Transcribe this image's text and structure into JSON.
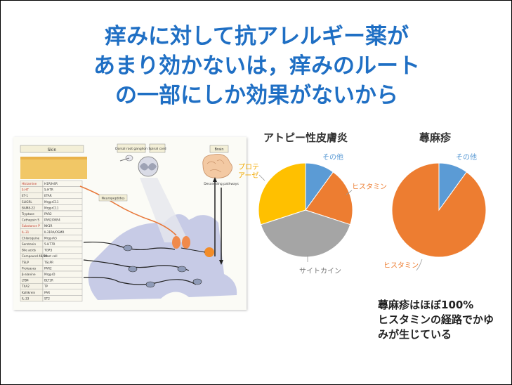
{
  "title": {
    "lines": [
      "痒みに対して抗アレルギー薬が",
      "あまり効かないは，痒みのルート",
      "の一部にしか効果がないから"
    ]
  },
  "figure": {
    "skin_label": "Skin",
    "drg_label": "Dorsal root ganglion",
    "spinal_label": "Spinal cord",
    "brain_label": "Brain",
    "descending_label": "Descending pathways",
    "neuropeptides_label": "Neuropeptides",
    "pruritogens": [
      "Histamine",
      "5-HT",
      "ET-1",
      "SLIGRL",
      "BAM8-22",
      "Tryptase",
      "Cathepsin S",
      "Substance P",
      "IL-31",
      "Chloroquine",
      "Serotonin",
      "Bile acids",
      "Compound 48/80",
      "TSLP",
      "Proteases",
      "β-alanine",
      "LTB4",
      "TXA2",
      "Kallikrein",
      "IL-33"
    ],
    "receptors": [
      "H1R/H4R",
      "5-HTR",
      "ETAR",
      "MrgprC11",
      "MrgprC11",
      "PAR2",
      "PAR2/PAR4",
      "NK1R",
      "IL31RA/OSMR",
      "MrgprA3",
      "5-HT7R",
      "TGR5",
      "Mast cell",
      "TSLPR",
      "PAR2",
      "MrgprD",
      "BLT1R",
      "TP",
      "PAR",
      "ST2"
    ]
  },
  "charts": [
    {
      "title": "アトピー性皮膚炎",
      "chart_data": {
        "type": "pie",
        "slices": [
          {
            "label": "その他",
            "value": 10,
            "color": "#5b9bd5"
          },
          {
            "label": "ヒスタミン",
            "value": 20,
            "color": "#ed7d31"
          },
          {
            "label": "サイトカイン",
            "value": 40,
            "color": "#a5a5a5"
          },
          {
            "label": "プロテアーゼ",
            "value": 30,
            "color": "#ffc000"
          }
        ]
      }
    },
    {
      "title": "蕁麻疹",
      "chart_data": {
        "type": "pie",
        "slices": [
          {
            "label": "その他",
            "value": 10,
            "color": "#5b9bd5"
          },
          {
            "label": "ヒスタミン",
            "value": 90,
            "color": "#ed7d31"
          }
        ]
      }
    }
  ],
  "pie_labels": {
    "ad_other": "その他",
    "ad_histamine": "ヒスタミン",
    "ad_cytokine": "サイトカイン",
    "ad_protease_1": "プロテ",
    "ad_protease_2": "アーゼ",
    "u_other": "その他",
    "u_histamine": "ヒスタミン"
  },
  "note": {
    "lines": [
      "蕁麻疹はほぼ100%",
      "ヒスタミンの経路でかゆ",
      "みが生じている"
    ]
  }
}
